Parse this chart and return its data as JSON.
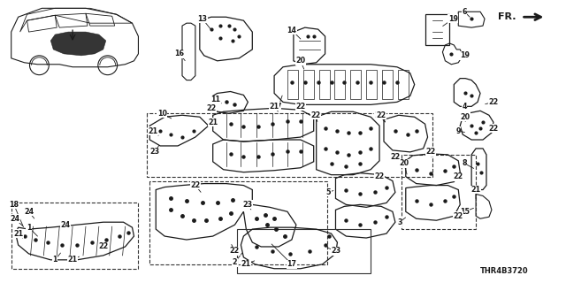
{
  "bg_color": "#ffffff",
  "line_color": "#1a1a1a",
  "fig_width": 6.4,
  "fig_height": 3.2,
  "dpi": 100,
  "diagram_code": "THR4B3720"
}
